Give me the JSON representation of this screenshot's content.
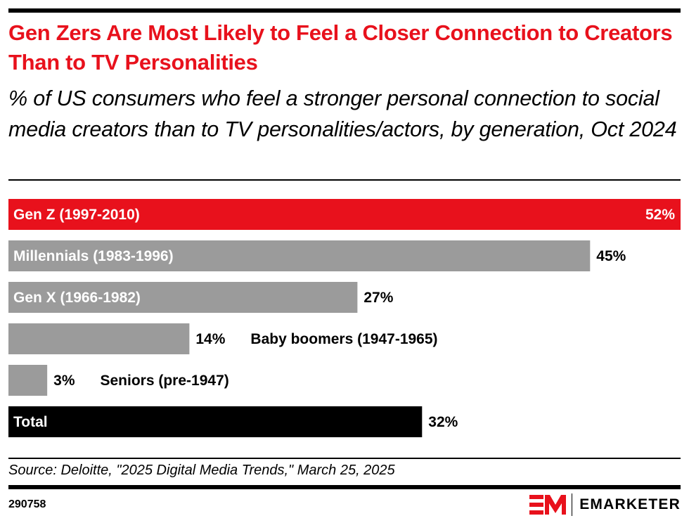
{
  "header": {
    "title": "Gen Zers Are Most Likely to Feel a Closer Connection to Creators Than to TV Personalities",
    "subtitle": "% of US consumers who feel a stronger personal connection to social media creators than to TV personalities/actors, by generation, Oct 2024"
  },
  "colors": {
    "highlight": "#e8111c",
    "default": "#9b9b9b",
    "total": "#000000",
    "label_inside": "#ffffff",
    "label_outside": "#000000"
  },
  "chart_data": {
    "type": "bar",
    "orientation": "horizontal",
    "title": "Gen Zers Are Most Likely to Feel a Closer Connection to Creators Than to TV Personalities",
    "subtitle": "% of US consumers who feel a stronger personal connection to social media creators than to TV personalities/actors, by generation, Oct 2024",
    "xlabel": "",
    "ylabel": "",
    "unit": "%",
    "xlim": [
      0,
      52
    ],
    "grid": false,
    "legend": "none",
    "categories": [
      "Gen Z (1997-2010)",
      "Millennials (1983-1996)",
      "Gen X (1966-1982)",
      "Baby boomers (1947-1965)",
      "Seniors (pre-1947)",
      "Total"
    ],
    "values": [
      52,
      45,
      27,
      14,
      3,
      32
    ],
    "value_labels": [
      "52%",
      "45%",
      "27%",
      "14%",
      "3%",
      "32%"
    ],
    "bar_styles": [
      "highlight",
      "default",
      "default",
      "default",
      "default",
      "total"
    ]
  },
  "footer": {
    "source": "Source: Deloitte, \"2025 Digital Media Trends,\" March 25, 2025",
    "chart_id": "290758",
    "brand": "EMARKETER",
    "logo_mark": "EM"
  }
}
